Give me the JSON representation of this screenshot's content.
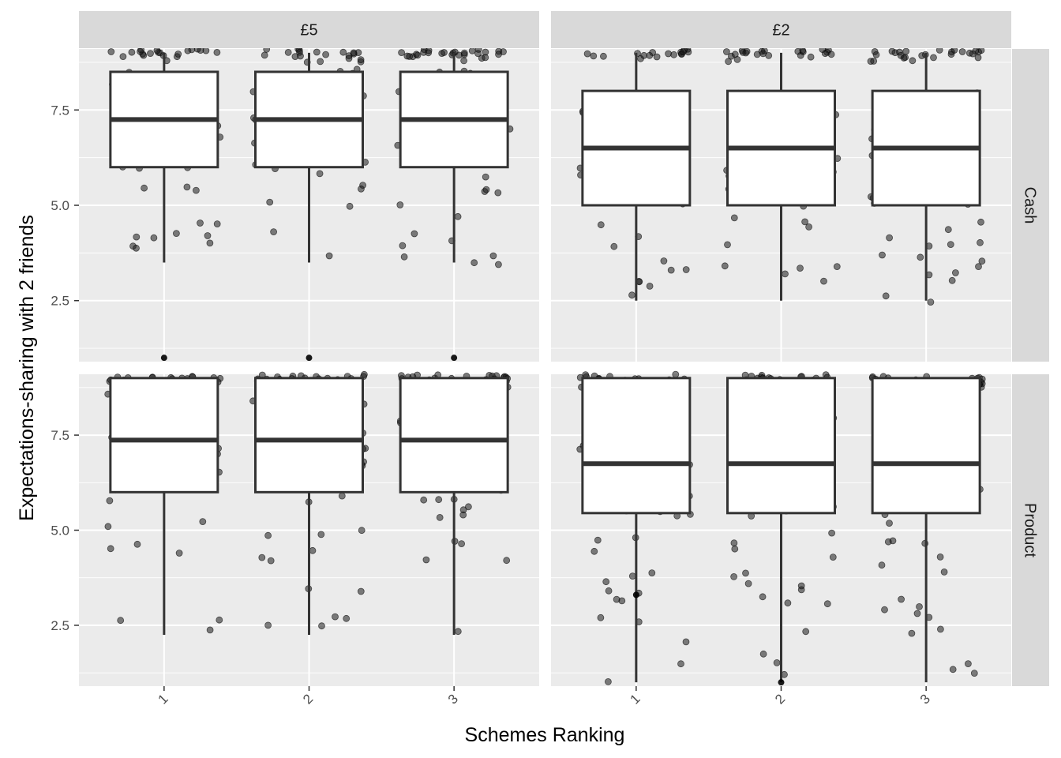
{
  "chart_data": {
    "type": "boxplot",
    "xlabel": "Schemes Ranking",
    "ylabel": "Expectations-sharing with 2 friends",
    "col_facets": [
      "£5",
      "£2"
    ],
    "row_facets": [
      "Cash",
      "Product"
    ],
    "categories": [
      "1",
      "2",
      "3"
    ],
    "y_ticks": [
      2.5,
      5.0,
      7.5
    ],
    "y_tick_labels": [
      "2.5",
      "5.0",
      "7.5"
    ],
    "ylim": [
      0.9,
      9.1
    ],
    "grid": true,
    "jitter_points": true,
    "panels": [
      {
        "col": "£5",
        "row": "Cash",
        "boxes": [
          {
            "category": "1",
            "whisker_low": 3.5,
            "q1": 6.0,
            "median": 7.25,
            "q3": 8.5,
            "whisker_high": 9.0
          },
          {
            "category": "2",
            "whisker_low": 3.5,
            "q1": 6.0,
            "median": 7.25,
            "q3": 8.5,
            "whisker_high": 9.0
          },
          {
            "category": "3",
            "whisker_low": 3.5,
            "q1": 6.0,
            "median": 7.25,
            "q3": 8.5,
            "whisker_high": 9.0
          }
        ],
        "outliers": [
          1.0,
          1.0,
          1.0
        ]
      },
      {
        "col": "£2",
        "row": "Cash",
        "boxes": [
          {
            "category": "1",
            "whisker_low": 2.5,
            "q1": 5.0,
            "median": 6.5,
            "q3": 8.0,
            "whisker_high": 9.0
          },
          {
            "category": "2",
            "whisker_low": 2.5,
            "q1": 5.0,
            "median": 6.5,
            "q3": 8.0,
            "whisker_high": 9.0
          },
          {
            "category": "3",
            "whisker_low": 2.5,
            "q1": 5.0,
            "median": 6.5,
            "q3": 8.0,
            "whisker_high": 9.0
          }
        ],
        "outliers": []
      },
      {
        "col": "£5",
        "row": "Product",
        "boxes": [
          {
            "category": "1",
            "whisker_low": 2.25,
            "q1": 6.0,
            "median": 7.37,
            "q3": 9.0,
            "whisker_high": 9.0
          },
          {
            "category": "2",
            "whisker_low": 2.25,
            "q1": 6.0,
            "median": 7.37,
            "q3": 9.0,
            "whisker_high": 9.0
          },
          {
            "category": "3",
            "whisker_low": 2.25,
            "q1": 6.0,
            "median": 7.37,
            "q3": 9.0,
            "whisker_high": 9.0
          }
        ],
        "outliers": []
      },
      {
        "col": "£2",
        "row": "Product",
        "boxes": [
          {
            "category": "1",
            "whisker_low": 1.0,
            "q1": 5.45,
            "median": 6.75,
            "q3": 9.0,
            "whisker_high": 9.0
          },
          {
            "category": "2",
            "whisker_low": 1.0,
            "q1": 5.45,
            "median": 6.75,
            "q3": 9.0,
            "whisker_high": 9.0
          },
          {
            "category": "3",
            "whisker_low": 1.0,
            "q1": 5.45,
            "median": 6.75,
            "q3": 9.0,
            "whisker_high": 9.0
          }
        ],
        "outliers": [
          3.3,
          1.0
        ]
      }
    ],
    "colors": {
      "panel_background": "#ebebeb",
      "strip_background": "#d9d9d9",
      "grid_line": "#ffffff",
      "box_fill": "#ffffff",
      "box_line": "#333333",
      "point": "#1a1a1a"
    }
  }
}
